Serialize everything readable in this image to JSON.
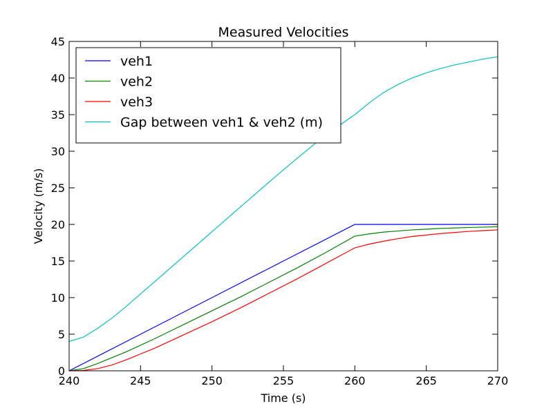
{
  "chart_data": {
    "type": "line",
    "title": "Measured Velocities",
    "xlabel": "Time (s)",
    "ylabel": "Velocity (m/s)",
    "xlim": [
      240,
      270
    ],
    "ylim": [
      0,
      45
    ],
    "xticks": [
      240,
      245,
      250,
      255,
      260,
      265,
      270
    ],
    "yticks": [
      0,
      5,
      10,
      15,
      20,
      25,
      30,
      35,
      40,
      45
    ],
    "xtick_labels": [
      "240",
      "245",
      "250",
      "255",
      "260",
      "265",
      "270"
    ],
    "ytick_labels": [
      "0",
      "5",
      "10",
      "15",
      "20",
      "25",
      "30",
      "35",
      "40",
      "45"
    ],
    "grid": false,
    "legend_position": "top-left",
    "series": [
      {
        "name": "veh1",
        "color": "#0000ff",
        "x": [
          240,
          245,
          250,
          255,
          260,
          265,
          270
        ],
        "y": [
          0,
          5,
          10,
          15,
          20,
          20,
          20
        ]
      },
      {
        "name": "veh2",
        "color": "#008000",
        "x": [
          240,
          241,
          242,
          243,
          244,
          245,
          246,
          248,
          250,
          252,
          254,
          256,
          258,
          260,
          261,
          262,
          263,
          264,
          265,
          266,
          267,
          268,
          269,
          270
        ],
        "y": [
          0,
          0.3,
          1.0,
          1.8,
          2.6,
          3.5,
          4.4,
          6.3,
          8.2,
          10.1,
          12.1,
          14.1,
          16.2,
          18.4,
          18.7,
          18.95,
          19.1,
          19.25,
          19.35,
          19.45,
          19.52,
          19.58,
          19.63,
          19.68
        ]
      },
      {
        "name": "veh3",
        "color": "#ff0000",
        "x": [
          240,
          241,
          242,
          243,
          244,
          245,
          246,
          247,
          248,
          250,
          252,
          254,
          256,
          258,
          260,
          261,
          262,
          263,
          264,
          265,
          266,
          267,
          268,
          269,
          270
        ],
        "y": [
          0,
          0.05,
          0.3,
          0.8,
          1.5,
          2.3,
          3.1,
          4.0,
          4.9,
          6.7,
          8.6,
          10.6,
          12.6,
          14.7,
          16.8,
          17.3,
          17.7,
          18.05,
          18.35,
          18.55,
          18.75,
          18.9,
          19.05,
          19.15,
          19.25
        ]
      },
      {
        "name": "Gap between veh1 & veh2 (m)",
        "color": "#00bfbf",
        "x": [
          240,
          241,
          242,
          243,
          244,
          245,
          246,
          247,
          248,
          249,
          250,
          252,
          254,
          256,
          258,
          260,
          261,
          262,
          263,
          264,
          265,
          266,
          267,
          268,
          269,
          270
        ],
        "y": [
          4.0,
          4.6,
          5.8,
          7.2,
          8.8,
          10.5,
          12.2,
          13.9,
          15.6,
          17.3,
          19.0,
          22.4,
          25.8,
          29.1,
          32.3,
          35.0,
          36.6,
          38.0,
          39.1,
          40.0,
          40.7,
          41.3,
          41.8,
          42.2,
          42.6,
          42.9
        ]
      }
    ]
  }
}
